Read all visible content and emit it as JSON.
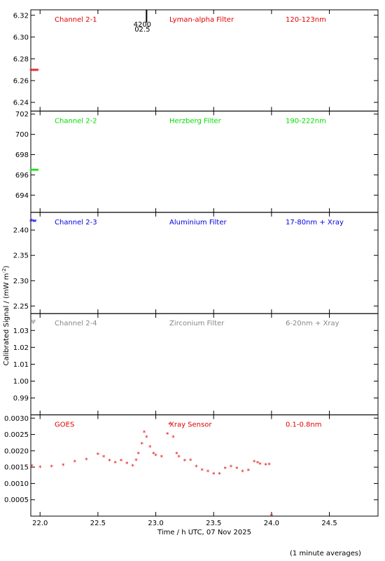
{
  "chart_data": {
    "type": "scatter",
    "ylabel": "Calibrated Signal / (mW m",
    "ylabel_exp": "-2",
    "ylabel_close": ")",
    "xlabel": "Time / h UTC, 07 Nov 2025",
    "footnote": "(1 minute averages)",
    "xlim": [
      21.92,
      24.92
    ],
    "xticks": [
      "22.0",
      "22.5",
      "23.0",
      "23.5",
      "24.0",
      "24.5"
    ],
    "panels": [
      {
        "channel": "Channel 2-1",
        "filter": "Lyman-alpha Filter",
        "band": "120-123nm",
        "color": "#e00000",
        "ylim": [
          6.232,
          6.325
        ],
        "yticks": [
          "6.24",
          "6.26",
          "6.28",
          "6.30",
          "6.32"
        ],
        "annotation": {
          "text1": "4200",
          "text2": "02.5",
          "x": 22.92
        },
        "series": [
          {
            "x": [
              21.92,
              21.93,
              21.94,
              21.95,
              21.96,
              21.97,
              21.98
            ],
            "y": [
              6.269,
              6.269,
              6.269,
              6.269,
              6.269,
              6.269,
              6.269
            ]
          }
        ]
      },
      {
        "channel": "Channel 2-2",
        "filter": "Herzberg Filter",
        "band": "190-222nm",
        "color": "#00dd00",
        "ylim": [
          692.3,
          702.3
        ],
        "yticks": [
          "694",
          "696",
          "698",
          "700",
          "702"
        ],
        "series": [
          {
            "x": [
              21.92,
              21.93,
              21.94,
              21.95,
              21.96,
              21.97,
              21.98
            ],
            "y": [
              696.4,
              696.4,
              696.4,
              696.4,
              696.4,
              696.4,
              696.4
            ]
          }
        ]
      },
      {
        "channel": "Channel 2-3",
        "filter": "Aluminium Filter",
        "band": "17-80nm + Xray",
        "color": "#0000dd",
        "ylim": [
          2.235,
          2.435
        ],
        "yticks": [
          "2.25",
          "2.30",
          "2.35",
          "2.40"
        ],
        "series": [
          {
            "x": [
              21.92,
              21.93,
              21.94,
              21.95,
              21.96
            ],
            "y": [
              2.417,
              2.418,
              2.417,
              2.416,
              2.417
            ]
          }
        ]
      },
      {
        "channel": "Channel 2-4",
        "filter": "Zirconium Filter",
        "band": "6-20nm + Xray",
        "color": "#888888",
        "ylim": [
          0.98,
          1.04
        ],
        "yticks": [
          "0.99",
          "1.00",
          "1.01",
          "1.02",
          "1.03"
        ],
        "series": [
          {
            "x": [
              21.93,
              21.94,
              21.95
            ],
            "y": [
              1.035,
              1.034,
              1.035
            ]
          }
        ]
      },
      {
        "channel": "GOES",
        "filter": "Xray Sensor",
        "band": "0.1-0.8nm",
        "color": "#e00000",
        "ylim": [
          0,
          0.0031
        ],
        "yticks": [
          "0.0005",
          "0.0010",
          "0.0015",
          "0.0020",
          "0.0025",
          "0.0030"
        ],
        "series": [
          {
            "x": [
              21.93,
              22.0,
              22.1,
              22.2,
              22.3,
              22.4,
              22.5,
              22.55,
              22.6,
              22.65,
              22.7,
              22.75,
              22.8,
              22.83,
              22.85,
              22.88,
              22.9,
              22.92,
              22.95,
              22.98,
              23.0,
              23.05,
              23.1,
              23.12,
              23.15,
              23.18,
              23.2,
              23.25,
              23.3,
              23.35,
              23.4,
              23.45,
              23.5,
              23.55,
              23.6,
              23.65,
              23.7,
              23.75,
              23.8,
              23.85,
              23.88,
              23.9,
              23.95,
              23.98,
              24.0
            ],
            "y": [
              0.00152,
              0.00148,
              0.0015,
              0.00155,
              0.00165,
              0.00172,
              0.00188,
              0.0018,
              0.00168,
              0.00162,
              0.00168,
              0.0016,
              0.00152,
              0.0017,
              0.0019,
              0.0022,
              0.00255,
              0.0024,
              0.0021,
              0.0019,
              0.00185,
              0.0018,
              0.0025,
              0.0028,
              0.0024,
              0.0019,
              0.0018,
              0.00168,
              0.0017,
              0.0015,
              0.0014,
              0.00135,
              0.00128,
              0.00128,
              0.00145,
              0.0015,
              0.00145,
              0.00135,
              0.00138,
              0.00165,
              0.00162,
              0.00158,
              0.00156,
              0.00157,
              1e-05
            ]
          }
        ]
      }
    ]
  }
}
